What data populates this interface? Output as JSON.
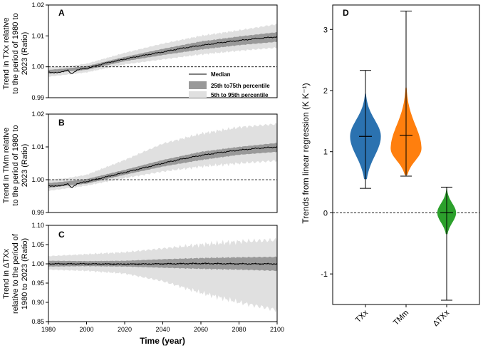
{
  "chart_data": [
    {
      "type": "area",
      "panel": "A",
      "ylabel": [
        "Trend in TXx relative",
        "to the period of 1980 to",
        "2023 (Ratio)"
      ],
      "ylim": [
        0.99,
        1.02
      ],
      "yticks": [
        0.99,
        1.0,
        1.01,
        1.02
      ],
      "ytick_labels": [
        "0.99",
        "1.00",
        "1.01",
        "1.02"
      ],
      "xlim": [
        1980,
        2100
      ],
      "reference_line": 1.0,
      "series": [
        {
          "name": "Median",
          "x": [
            1980,
            1985,
            1990,
            1992,
            1995,
            2000,
            2010,
            2020,
            2030,
            2040,
            2050,
            2060,
            2070,
            2080,
            2090,
            2100
          ],
          "values": [
            0.9983,
            0.998,
            0.999,
            0.9976,
            0.999,
            0.9995,
            1.0012,
            1.0025,
            1.0037,
            1.0048,
            1.006,
            1.0069,
            1.0078,
            1.0085,
            1.0092,
            1.0097
          ]
        },
        {
          "name": "25th to75th percentile",
          "x": [
            1980,
            1990,
            2000,
            2020,
            2040,
            2060,
            2080,
            2100
          ],
          "low": [
            0.9978,
            0.9985,
            0.999,
            1.0018,
            1.0038,
            1.0056,
            1.007,
            1.0081
          ],
          "high": [
            0.999,
            0.9995,
            1.0002,
            1.0032,
            1.0058,
            1.0082,
            1.0098,
            1.0112
          ]
        },
        {
          "name": "5th to 95th percentile",
          "x": [
            1980,
            1990,
            2000,
            2020,
            2040,
            2060,
            2080,
            2100
          ],
          "low": [
            0.9968,
            0.9975,
            0.9982,
            1.0008,
            1.0024,
            1.004,
            1.0052,
            1.0062
          ],
          "high": [
            0.9998,
            1.0002,
            1.001,
            1.0045,
            1.0075,
            1.01,
            1.0118,
            1.0138
          ]
        }
      ],
      "legend": [
        "Median",
        "25th to75th percentile",
        "5th to 95th percentile"
      ]
    },
    {
      "type": "area",
      "panel": "B",
      "ylabel": [
        "Trend in TMm relative",
        "to the period of 1980 to",
        "2023 (Ratio)"
      ],
      "ylim": [
        0.99,
        1.02
      ],
      "yticks": [
        0.99,
        1.0,
        1.01,
        1.02
      ],
      "ytick_labels": [
        "0.99",
        "1.00",
        "1.01",
        "1.02"
      ],
      "xlim": [
        1980,
        2100
      ],
      "reference_line": 1.0,
      "series": [
        {
          "name": "Median",
          "x": [
            1980,
            1985,
            1990,
            1992,
            1995,
            2000,
            2010,
            2020,
            2030,
            2040,
            2050,
            2060,
            2070,
            2080,
            2090,
            2100
          ],
          "values": [
            0.9982,
            0.998,
            0.9988,
            0.9975,
            0.9988,
            0.9994,
            1.0008,
            1.0022,
            1.0036,
            1.005,
            1.0063,
            1.0074,
            1.0083,
            1.009,
            1.0096,
            1.01
          ]
        },
        {
          "name": "25th to75th percentile",
          "x": [
            1980,
            1990,
            2000,
            2020,
            2040,
            2060,
            2080,
            2100
          ],
          "low": [
            0.9975,
            0.9982,
            0.9988,
            1.0015,
            1.004,
            1.006,
            1.0076,
            1.0085
          ],
          "high": [
            0.999,
            0.9995,
            1.0002,
            1.003,
            1.006,
            1.0085,
            1.01,
            1.0112
          ]
        },
        {
          "name": "5th to 95th percentile",
          "x": [
            1980,
            1990,
            2000,
            2020,
            2040,
            2060,
            2080,
            2100
          ],
          "low": [
            0.9966,
            0.9974,
            0.9982,
            1.0005,
            1.0025,
            1.004,
            1.005,
            1.0058
          ],
          "high": [
            1.0,
            1.0005,
            1.0015,
            1.006,
            1.011,
            1.014,
            1.016,
            1.017
          ]
        }
      ]
    },
    {
      "type": "area",
      "panel": "C",
      "ylabel": [
        "Trend in ΔTXx",
        "relative to the period of",
        "1980 to 2023 (Ratio)"
      ],
      "ylim": [
        0.85,
        1.1
      ],
      "yticks": [
        0.85,
        0.9,
        0.95,
        1.0,
        1.05,
        1.1
      ],
      "ytick_labels": [
        "0.85",
        "0.90",
        "0.95",
        "1.00",
        "1.05",
        "1.10"
      ],
      "xlabel": "Time (year)",
      "xlim": [
        1980,
        2100
      ],
      "xticks": [
        1980,
        2000,
        2020,
        2040,
        2060,
        2080,
        2100
      ],
      "xtick_labels": [
        "1980",
        "2000",
        "2020",
        "2040",
        "2060",
        "2080",
        "2100"
      ],
      "reference_line": 1.0,
      "series": [
        {
          "name": "Median",
          "x": [
            1980,
            2000,
            2020,
            2040,
            2060,
            2080,
            2100
          ],
          "values": [
            1.0,
            1.0,
            0.999,
            1.0,
            1.001,
            1.0,
            1.0
          ]
        },
        {
          "name": "25th to75th percentile",
          "x": [
            1980,
            2000,
            2020,
            2040,
            2060,
            2080,
            2100
          ],
          "low": [
            0.993,
            0.994,
            0.993,
            0.99,
            0.987,
            0.985,
            0.982
          ],
          "high": [
            1.008,
            1.007,
            1.008,
            1.012,
            1.015,
            1.017,
            1.018
          ]
        },
        {
          "name": "5th to 95th percentile",
          "x": [
            1980,
            2000,
            2020,
            2040,
            2060,
            2080,
            2100
          ],
          "low": [
            0.985,
            0.982,
            0.975,
            0.955,
            0.925,
            0.9,
            0.88
          ],
          "high": [
            1.02,
            1.025,
            1.03,
            1.04,
            1.05,
            1.058,
            1.062
          ]
        }
      ]
    },
    {
      "type": "violin",
      "panel": "D",
      "ylabel": "Trends from linear regression (K K⁻¹)",
      "ylim": [
        -1.5,
        3.4
      ],
      "yticks": [
        -1,
        0,
        1,
        2,
        3
      ],
      "ytick_labels": [
        "-1",
        "0",
        "1",
        "2",
        "3"
      ],
      "reference_line": 0,
      "categories": [
        "TXx",
        "TMm",
        "ΔTXx"
      ],
      "series": [
        {
          "name": "TXx",
          "color": "#2b72b0",
          "min": 0.4,
          "max": 2.33,
          "median": 1.25,
          "body_low": 0.55,
          "body_high": 1.95,
          "mode": 1.25,
          "max_halfwidth": 0.9
        },
        {
          "name": "TMm",
          "color": "#ff7f0e",
          "min": 0.6,
          "max": 3.3,
          "median": 1.27,
          "body_low": 0.62,
          "body_high": 2.05,
          "mode": 1.05,
          "max_halfwidth": 0.9
        },
        {
          "name": "ΔTXx",
          "color": "#2ca02c",
          "min": -1.43,
          "max": 0.42,
          "median": 0.0,
          "body_low": -0.35,
          "body_high": 0.4,
          "mode": 0.0,
          "max_halfwidth": 0.55
        }
      ]
    }
  ]
}
